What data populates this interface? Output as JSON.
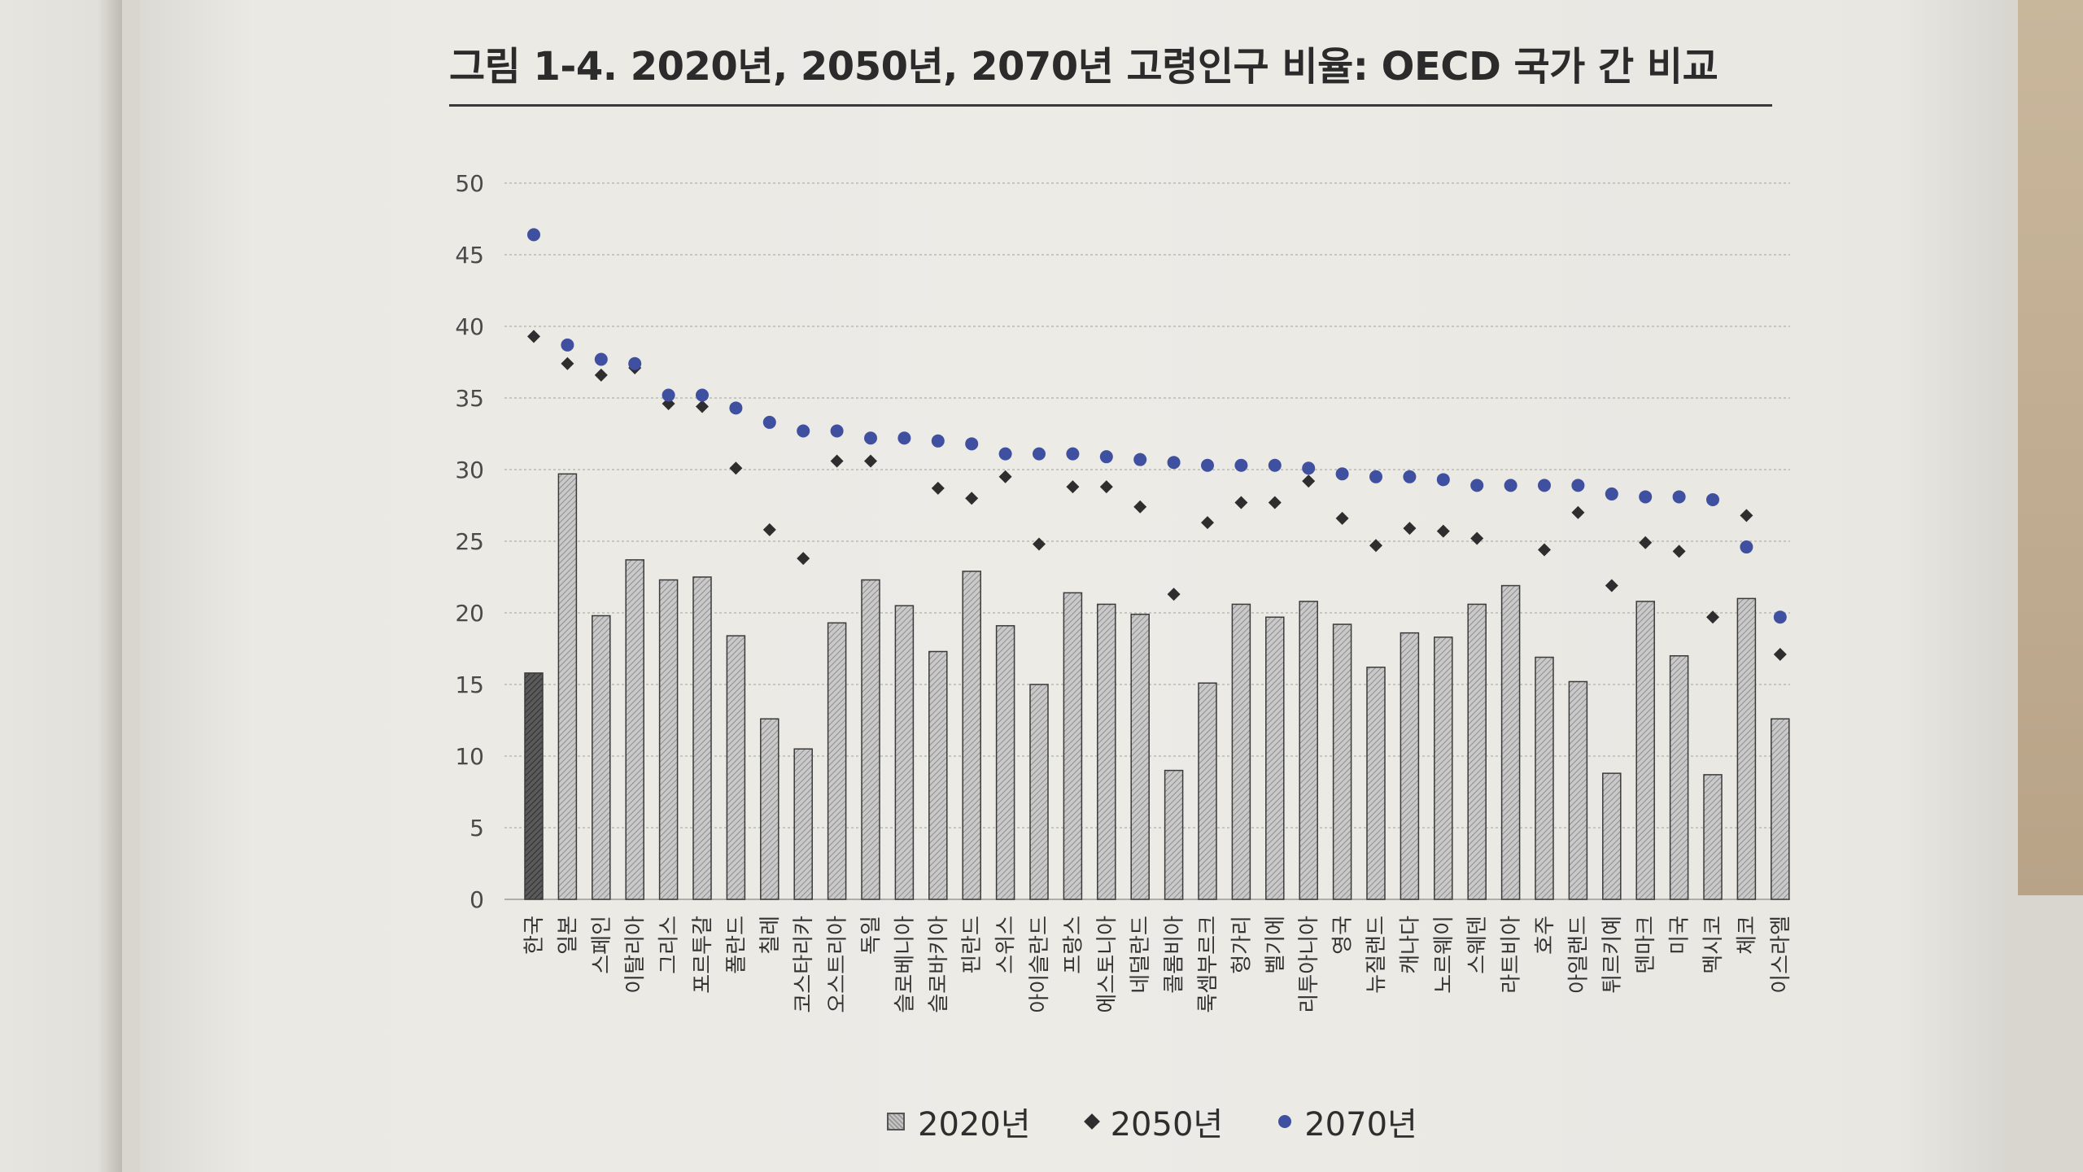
{
  "figure": {
    "title": "그림 1-4. 2020년, 2050년, 2070년 고령인구 비율: OECD 국가 간 비교"
  },
  "chart_data": {
    "type": "bar",
    "title": "그림 1-4. 2020년, 2050년, 2070년 고령인구 비율: OECD 국가 간 비교",
    "xlabel": "",
    "ylabel": "",
    "ylim": [
      0,
      50
    ],
    "yticks": [
      "0",
      "5",
      "10",
      "15",
      "20",
      "25",
      "30",
      "35",
      "40",
      "45",
      "50"
    ],
    "grid": true,
    "legend_position": "bottom",
    "categories": [
      "한국",
      "일본",
      "스페인",
      "이탈리아",
      "그리스",
      "포르투갈",
      "폴란드",
      "칠레",
      "코스타리카",
      "오스트리아",
      "독일",
      "슬로베니아",
      "슬로바키아",
      "핀란드",
      "스위스",
      "아이슬란드",
      "프랑스",
      "에스토니아",
      "네덜란드",
      "콜롬비아",
      "룩셈부르크",
      "헝가리",
      "벨기에",
      "리투아니아",
      "영국",
      "뉴질랜드",
      "캐나다",
      "노르웨이",
      "스웨덴",
      "라트비아",
      "호주",
      "아일랜드",
      "튀르키예",
      "덴마크",
      "미국",
      "멕시코",
      "체코",
      "이스라엘"
    ],
    "highlight_category": "한국",
    "series": [
      {
        "name": "2020년",
        "type": "bar",
        "color": "#a9a9a9",
        "highlight_color": "#4a4a4a",
        "values": [
          15.8,
          29.7,
          19.8,
          23.7,
          22.3,
          22.5,
          18.4,
          12.6,
          10.5,
          19.3,
          22.3,
          20.5,
          17.3,
          22.9,
          19.1,
          15.0,
          21.4,
          20.6,
          19.9,
          9.0,
          15.1,
          20.6,
          19.7,
          20.8,
          19.2,
          16.2,
          18.6,
          18.3,
          20.6,
          21.9,
          16.9,
          15.2,
          8.8,
          20.8,
          17.0,
          8.7,
          21.0,
          12.6
        ]
      },
      {
        "name": "2050년",
        "type": "scatter",
        "marker": "diamond",
        "color": "#2e2e2e",
        "values": [
          39.3,
          37.4,
          36.6,
          37.1,
          34.6,
          34.4,
          30.1,
          25.8,
          23.8,
          30.6,
          30.6,
          null,
          28.7,
          28.0,
          29.5,
          24.8,
          28.8,
          28.8,
          27.4,
          21.3,
          26.3,
          27.7,
          27.7,
          29.2,
          26.6,
          24.7,
          25.9,
          25.7,
          25.2,
          null,
          24.4,
          27.0,
          21.9,
          24.9,
          24.3,
          19.7,
          26.8,
          17.1
        ]
      },
      {
        "name": "2070년",
        "type": "scatter",
        "marker": "circle",
        "color": "#4050a0",
        "values": [
          46.4,
          38.7,
          37.7,
          37.4,
          35.2,
          35.2,
          34.3,
          33.3,
          32.7,
          32.7,
          32.2,
          32.2,
          32.0,
          31.8,
          31.1,
          31.1,
          31.1,
          30.9,
          30.7,
          30.5,
          30.3,
          30.3,
          30.3,
          30.1,
          29.7,
          29.5,
          29.5,
          29.3,
          28.9,
          28.9,
          28.9,
          28.9,
          28.3,
          28.1,
          28.1,
          27.9,
          24.6,
          19.7
        ]
      }
    ]
  }
}
